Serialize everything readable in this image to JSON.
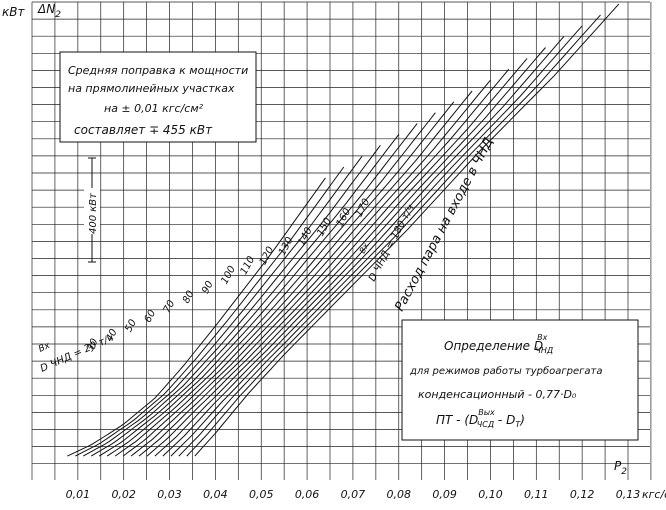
{
  "chart_data": {
    "type": "line",
    "y_unit_label": "кВт",
    "y_axis_label": "ΔN",
    "y_axis_label_sub": "2",
    "x_axis_label": "P",
    "x_axis_label_sub": "2",
    "x_unit_label": "кгс/см²",
    "x_ticks": [
      "0,01",
      "0,02",
      "0,03",
      "0,04",
      "0,05",
      "0,06",
      "0,07",
      "0,08",
      "0,09",
      "0,10",
      "0,11",
      "0,12",
      "0,13"
    ],
    "scale_marker_label": "400 кВт",
    "family_parameter_label": "Расход пара на входе в ЧНД",
    "series_labels": [
      "30",
      "40",
      "50",
      "60",
      "70",
      "80",
      "90",
      "100",
      "110",
      "120",
      "130",
      "140",
      "150",
      "160",
      "170"
    ],
    "first_series_label": "D ЧНД = 20 т/ч",
    "first_series_superscript": "Вх",
    "last_series_label": "D ЧНД = 180 т/ч",
    "last_series_superscript": "Вх",
    "series": [
      {
        "name": "20",
        "x": [
          0.0077,
          0.013,
          0.02,
          0.027,
          0.033,
          0.04,
          0.052,
          0.064
        ],
        "y": [
          0.42,
          0.62,
          0.98,
          1.45,
          2.0,
          2.7,
          3.95,
          5.3
        ]
      },
      {
        "name": "180",
        "x": [
          0.0355,
          0.04,
          0.047,
          0.055,
          0.066,
          0.082,
          0.098,
          0.114,
          0.128
        ],
        "y": [
          0.42,
          0.82,
          1.5,
          2.2,
          3.1,
          4.4,
          5.8,
          7.1,
          8.35
        ]
      }
    ],
    "grid": true
  },
  "annotation_top": {
    "line1": "Средняя поправка к мощности",
    "line2": "на прямолинейных участках",
    "line3": "на ± 0,01 кгс/см²",
    "line4": "составляет ∓ 455 кВт"
  },
  "annotation_bottom": {
    "line1": "Определение D",
    "line1_sub": "ЧНД",
    "line1_sup": "Вх",
    "line2": "для режимов работы турбоагрегата",
    "line3": "конденсационный - 0,77·D₀",
    "line4": "ПТ - (D",
    "line4_sub": "ЧСД",
    "line4_sup": "Вых",
    "line4_end": " - D",
    "line4_end_sub": "Т",
    "line4_close": ")"
  }
}
